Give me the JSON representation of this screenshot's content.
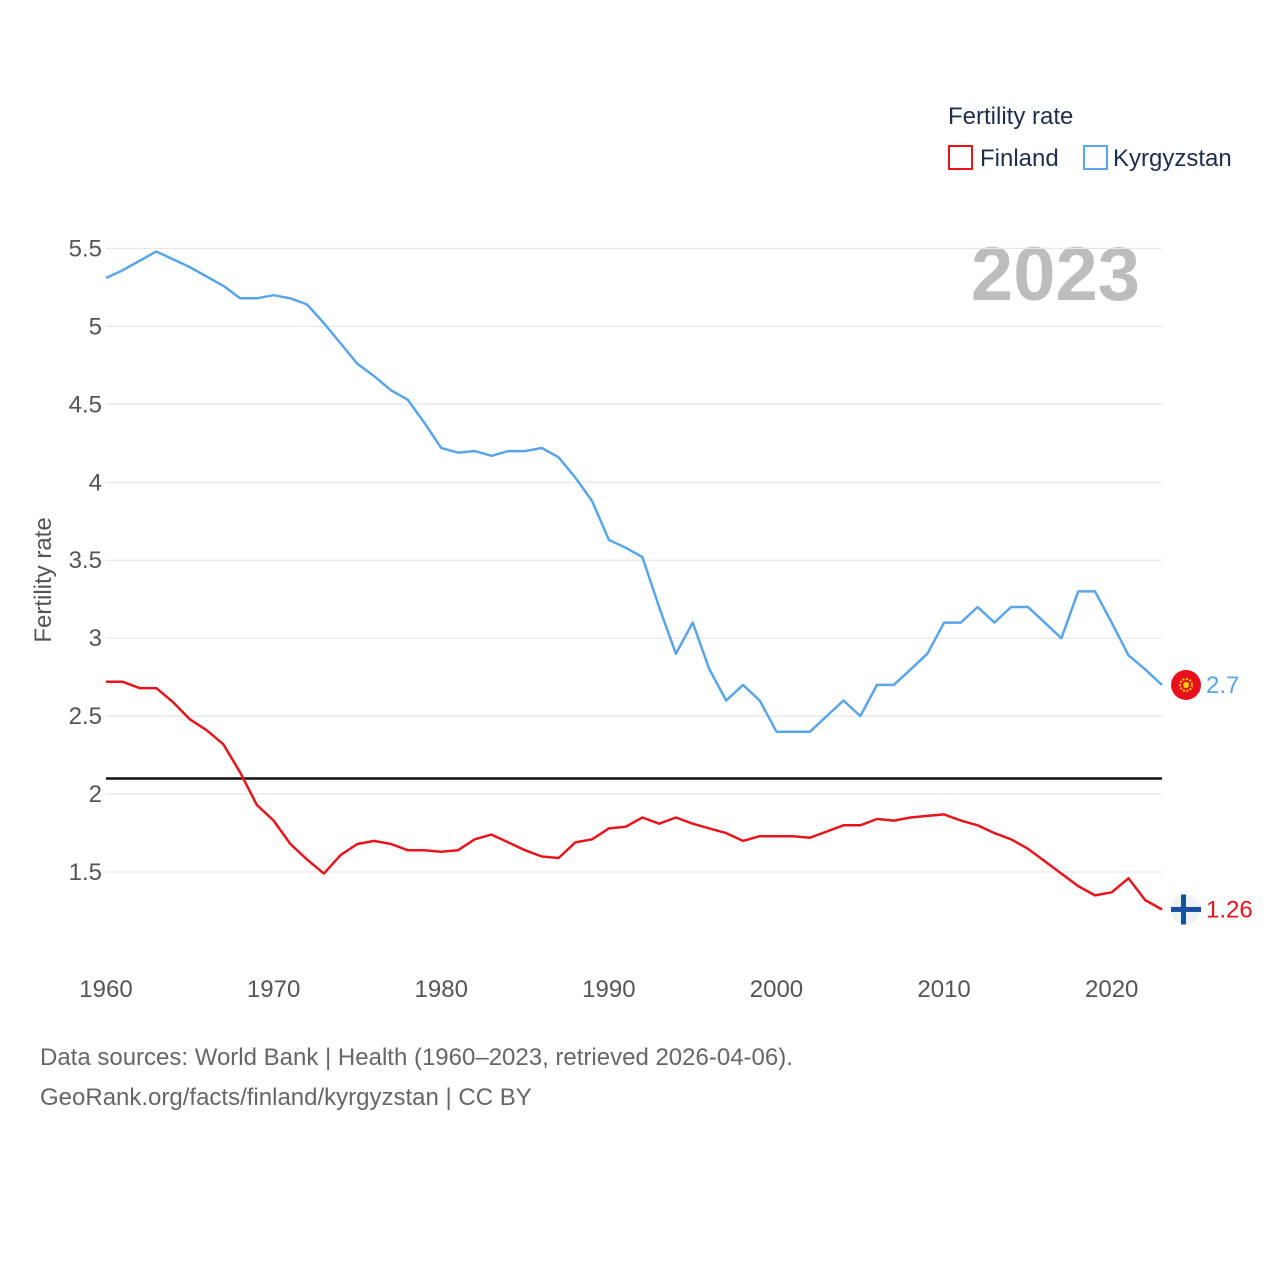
{
  "chart_data": {
    "type": "line",
    "title": "Fertility rate",
    "ylabel": "Fertility rate",
    "xlabel": "",
    "current_year": "2023",
    "xlim": [
      1960,
      2023
    ],
    "ylim": [
      1.0,
      5.65
    ],
    "y_ticks": [
      1.5,
      2,
      2.5,
      3,
      3.5,
      4,
      4.5,
      5,
      5.5
    ],
    "y_tick_labels": [
      "1.5",
      "2",
      "2.5",
      "3",
      "3.5",
      "4",
      "4.5",
      "5",
      "5.5"
    ],
    "x_ticks": [
      1960,
      1970,
      1980,
      1990,
      2000,
      2010,
      2020
    ],
    "x_tick_labels": [
      "1960",
      "1970",
      "1980",
      "1990",
      "2000",
      "2010",
      "2020"
    ],
    "reference_line": 2.1,
    "legend_title": "Fertility rate",
    "legend_position": "top-right",
    "x": [
      1960,
      1961,
      1962,
      1963,
      1964,
      1965,
      1966,
      1967,
      1968,
      1969,
      1970,
      1971,
      1972,
      1973,
      1974,
      1975,
      1976,
      1977,
      1978,
      1979,
      1980,
      1981,
      1982,
      1983,
      1984,
      1985,
      1986,
      1987,
      1988,
      1989,
      1990,
      1991,
      1992,
      1993,
      1994,
      1995,
      1996,
      1997,
      1998,
      1999,
      2000,
      2001,
      2002,
      2003,
      2004,
      2005,
      2006,
      2007,
      2008,
      2009,
      2010,
      2011,
      2012,
      2013,
      2014,
      2015,
      2016,
      2017,
      2018,
      2019,
      2020,
      2021,
      2022,
      2023
    ],
    "series": [
      {
        "name": "Finland",
        "color": "#e8141c",
        "end_label": "1.26",
        "values": [
          2.72,
          2.72,
          2.68,
          2.68,
          2.59,
          2.48,
          2.41,
          2.32,
          2.14,
          1.93,
          1.83,
          1.68,
          1.58,
          1.49,
          1.61,
          1.68,
          1.7,
          1.68,
          1.64,
          1.64,
          1.63,
          1.64,
          1.71,
          1.74,
          1.69,
          1.64,
          1.6,
          1.59,
          1.69,
          1.71,
          1.78,
          1.79,
          1.85,
          1.81,
          1.85,
          1.81,
          1.78,
          1.75,
          1.7,
          1.73,
          1.73,
          1.73,
          1.72,
          1.76,
          1.8,
          1.8,
          1.84,
          1.83,
          1.85,
          1.86,
          1.87,
          1.83,
          1.8,
          1.75,
          1.71,
          1.65,
          1.57,
          1.49,
          1.41,
          1.35,
          1.37,
          1.46,
          1.32,
          1.26
        ]
      },
      {
        "name": "Kyrgyzstan",
        "color": "#5aa5e8",
        "end_label": "2.7",
        "values": [
          5.31,
          5.36,
          5.42,
          5.48,
          5.43,
          5.38,
          5.32,
          5.26,
          5.18,
          5.18,
          5.2,
          5.18,
          5.14,
          5.02,
          4.89,
          4.76,
          4.68,
          4.59,
          4.53,
          4.38,
          4.22,
          4.19,
          4.2,
          4.17,
          4.2,
          4.2,
          4.22,
          4.16,
          4.03,
          3.88,
          3.63,
          3.58,
          3.52,
          3.2,
          2.9,
          3.1,
          2.8,
          2.6,
          2.7,
          2.6,
          2.4,
          2.4,
          2.4,
          2.5,
          2.6,
          2.5,
          2.7,
          2.7,
          2.8,
          2.9,
          3.1,
          3.1,
          3.2,
          3.1,
          3.2,
          3.2,
          3.1,
          3.0,
          3.3,
          3.3,
          3.1,
          2.89,
          2.8,
          2.7
        ]
      }
    ]
  },
  "footer": {
    "line1": "Data sources: World Bank | Health (1960–2023, retrieved 2026-04-06).",
    "line2": "GeoRank.org/facts/finland/kyrgyzstan | CC BY"
  }
}
